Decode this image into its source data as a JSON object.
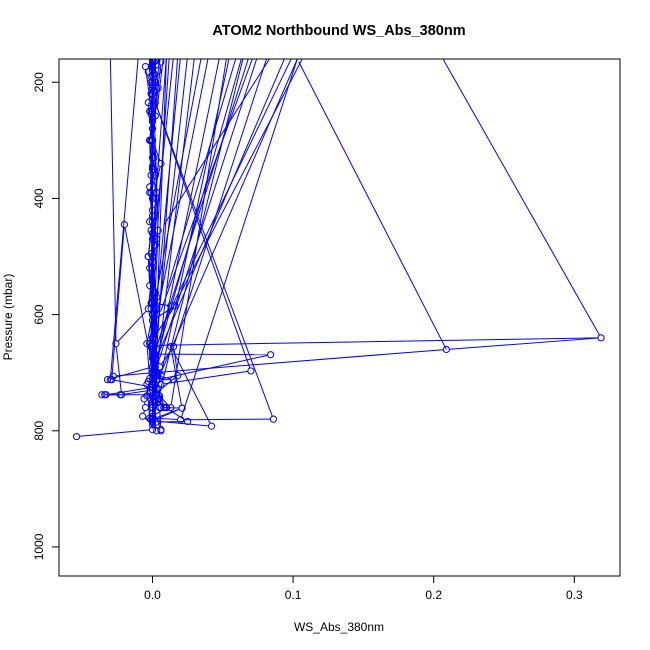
{
  "chart_data": {
    "type": "line",
    "title": "ATOM2 Northbound WS_Abs_380nm",
    "xlabel": "WS_Abs_380nm",
    "ylabel": "Pressure (mbar)",
    "xlim": [
      -0.0665,
      0.3325
    ],
    "ylim": [
      1050,
      160
    ],
    "y_reversed": true,
    "xticks": [
      0.0,
      0.1,
      0.2,
      0.3
    ],
    "xtick_labels": [
      "0.0",
      "0.1",
      "0.2",
      "0.3"
    ],
    "yticks": [
      200,
      400,
      600,
      800,
      1000
    ],
    "ytick_labels": [
      "200",
      "400",
      "600",
      "800",
      "1000"
    ],
    "grid": false,
    "series": [
      {
        "color": "#0000ff",
        "marker": "open-circle",
        "points": [
          [
            -0.054,
            810
          ],
          [
            0.0,
            798
          ],
          [
            -0.002,
            778
          ],
          [
            -0.004,
            720
          ],
          [
            0.003,
            700
          ],
          [
            -0.002,
            650
          ],
          [
            0.001,
            590
          ],
          [
            0.0,
            460
          ],
          [
            -0.001,
            360
          ],
          [
            0.0,
            300
          ],
          [
            0.002,
            258
          ],
          [
            -0.003,
            235
          ],
          [
            0.0,
            200
          ],
          [
            -0.003,
            182
          ],
          [
            0.001,
            165
          ],
          [
            -0.005,
            173
          ],
          [
            0.0,
            263
          ],
          [
            0.003,
            390
          ],
          [
            -0.001,
            590
          ],
          [
            0.0,
            650
          ],
          [
            0.002,
            700
          ],
          [
            0.0,
            740
          ],
          [
            0.005,
            760
          ],
          [
            0.006,
            798
          ],
          [
            0.0,
            760
          ],
          [
            -0.003,
            715
          ],
          [
            0.002,
            690
          ],
          [
            0.0,
            660
          ],
          [
            0.001,
            620
          ],
          [
            0.0,
            570
          ],
          [
            -0.002,
            520
          ],
          [
            0.0,
            500
          ],
          [
            0.003,
            400
          ],
          [
            0.0,
            350
          ],
          [
            -0.001,
            250
          ],
          [
            0.002,
            200
          ],
          [
            0.004,
            180
          ],
          [
            0.0,
            168
          ],
          [
            0.004,
            455
          ],
          [
            0.0,
            655
          ],
          [
            0.001,
            705
          ],
          [
            0.004,
            728
          ],
          [
            -0.002,
            735
          ],
          [
            0.001,
            748
          ],
          [
            0.0,
            778
          ],
          [
            0.02,
            781
          ],
          [
            0.086,
            780
          ],
          [
            0.002,
            235
          ],
          [
            0.07,
            697
          ],
          [
            0.006,
            720
          ],
          [
            0.003,
            700
          ],
          [
            0.0,
            668
          ],
          [
            0.084,
            669
          ],
          [
            0.004,
            712
          ],
          [
            0.006,
            760
          ],
          [
            0.021,
            761
          ],
          [
            0.0,
            783
          ],
          [
            0.042,
            792
          ],
          [
            0.013,
            655
          ],
          [
            0.021,
            761
          ],
          [
            0.0,
            780
          ],
          [
            0.003,
            785
          ],
          [
            0.025,
            784
          ],
          [
            0.009,
            760
          ],
          [
            0.005,
            740
          ],
          [
            0.0,
            720
          ],
          [
            0.001,
            700
          ],
          [
            0.209,
            660
          ],
          [
            0.319,
            640
          ],
          [
            0.0,
            653
          ],
          [
            0.003,
            705
          ],
          [
            0.0,
            730
          ],
          [
            -0.023,
            738
          ],
          [
            -0.034,
            738
          ],
          [
            -0.036,
            738
          ],
          [
            0.004,
            738
          ],
          [
            0.013,
            760
          ],
          [
            0.008,
            760
          ],
          [
            0.0,
            740
          ],
          [
            -0.002,
            650
          ],
          [
            0.016,
            585
          ],
          [
            0.0,
            610
          ],
          [
            -0.001,
            580
          ],
          [
            0.002,
            562
          ],
          [
            0.0,
            520
          ],
          [
            -0.001,
            495
          ],
          [
            0.003,
            470
          ],
          [
            0.0,
            430
          ],
          [
            -0.002,
            380
          ],
          [
            0.001,
            330
          ],
          [
            0.0,
            300
          ],
          [
            -0.002,
            250
          ],
          [
            0.0,
            220
          ],
          [
            -0.001,
            190
          ],
          [
            0.0,
            172
          ],
          [
            0.0,
            175
          ],
          [
            -0.001,
            655
          ],
          [
            0.0,
            710
          ],
          [
            0.004,
            712
          ],
          [
            0.015,
            712
          ],
          [
            0.003,
            705
          ],
          [
            0.0,
            700
          ],
          [
            -0.028,
            706
          ],
          [
            -0.03,
            712
          ],
          [
            -0.032,
            712
          ],
          [
            0.0,
            690
          ],
          [
            -0.02,
            445
          ],
          [
            -0.029,
            712
          ],
          [
            0.0,
            725
          ],
          [
            -0.033,
            738
          ],
          [
            -0.022,
            738
          ],
          [
            -0.026,
            650
          ],
          [
            -0.003,
            590
          ],
          [
            0.0,
            520
          ],
          [
            0.002,
            480
          ],
          [
            -0.002,
            440
          ],
          [
            0.0,
            420
          ],
          [
            -0.001,
            390
          ],
          [
            0.002,
            360
          ],
          [
            0.0,
            330
          ],
          [
            -0.001,
            300
          ],
          [
            0.0,
            280
          ],
          [
            -0.001,
            255
          ],
          [
            0.0,
            230
          ],
          [
            0.001,
            215
          ],
          [
            0.0,
            205
          ],
          [
            -0.001,
            200
          ],
          [
            0.0,
            188
          ],
          [
            0.0,
            180
          ],
          [
            0.0,
            175
          ],
          [
            0.0,
            170
          ],
          [
            0.0,
            165
          ],
          [
            0.0,
            163
          ],
          [
            0.0,
            210
          ],
          [
            -0.001,
            240
          ],
          [
            0.0,
            268
          ],
          [
            -0.002,
            300
          ],
          [
            0.0,
            345
          ],
          [
            0.0,
            400
          ],
          [
            -0.001,
            455
          ],
          [
            -0.003,
            500
          ],
          [
            -0.002,
            550
          ],
          [
            0.0,
            600
          ],
          [
            0.003,
            660
          ],
          [
            0.005,
            690
          ],
          [
            0.015,
            655
          ],
          [
            0.018,
            705
          ],
          [
            0.0,
            740
          ],
          [
            0.01,
            760
          ],
          [
            0.0,
            775
          ],
          [
            -0.001,
            780
          ],
          [
            0.003,
            800
          ],
          [
            0.006,
            800
          ],
          [
            0.0,
            790
          ],
          [
            -0.007,
            775
          ],
          [
            -0.005,
            760
          ],
          [
            -0.006,
            745
          ],
          [
            -0.004,
            740
          ],
          [
            -0.002,
            710
          ],
          [
            -0.004,
            650
          ],
          [
            0.0,
            600
          ],
          [
            -0.003,
            500
          ],
          [
            0.0,
            440
          ],
          [
            -0.002,
            390
          ],
          [
            0.001,
            350
          ],
          [
            -0.001,
            300
          ],
          [
            0.0,
            260
          ],
          [
            -0.001,
            220
          ],
          [
            0.001,
            185
          ],
          [
            0.0,
            170
          ],
          [
            0.006,
            165
          ],
          [
            0.0,
            300
          ],
          [
            0.0,
            600
          ],
          [
            0.0,
            700
          ],
          [
            0.005,
            745
          ],
          [
            0.0,
            770
          ],
          [
            0.0,
            785
          ],
          [
            0.0,
            760
          ],
          [
            0.0,
            700
          ],
          [
            0.003,
            600
          ],
          [
            0.0,
            500
          ],
          [
            0.003,
            590
          ],
          [
            0.0,
            660
          ],
          [
            0.002,
            720
          ],
          [
            0.0,
            755
          ],
          [
            0.004,
            700
          ],
          [
            0.0,
            640
          ],
          [
            0.003,
            570
          ],
          [
            0.0,
            510
          ],
          [
            0.0,
            470
          ],
          [
            0.0,
            400
          ],
          [
            0.006,
            340
          ],
          [
            0.0,
            300
          ],
          [
            0.0,
            250
          ],
          [
            0.004,
            210
          ],
          [
            0.0,
            180
          ],
          [
            0.002,
            163
          ],
          [
            0.0,
            200
          ],
          [
            0.0,
            250
          ],
          [
            -0.002,
            300
          ],
          [
            0.0,
            460
          ],
          [
            0.0,
            580
          ],
          [
            0.013,
            585
          ],
          [
            0.0,
            675
          ],
          [
            0.006,
            705
          ],
          [
            0.0,
            750
          ],
          [
            0.0,
            770
          ],
          [
            0.004,
            745
          ],
          [
            0.0,
            720
          ]
        ]
      }
    ],
    "extra_segments": [
      [
        [
          0.001,
          705
        ],
        [
          0.075,
          153
        ]
      ],
      [
        [
          0.005,
          715
        ],
        [
          0.055,
          153
        ]
      ],
      [
        [
          0.002,
          680
        ],
        [
          0.095,
          153
        ]
      ],
      [
        [
          0.012,
          600
        ],
        [
          0.108,
          153
        ]
      ],
      [
        [
          0.014,
          585
        ],
        [
          0.1,
          153
        ]
      ],
      [
        [
          0.01,
          560
        ],
        [
          0.06,
          153
        ]
      ],
      [
        [
          0.006,
          700
        ],
        [
          0.103,
          160
        ]
      ],
      [
        [
          0.103,
          160
        ],
        [
          0.209,
          660
        ]
      ],
      [
        [
          0.003,
          655
        ],
        [
          0.069,
          153
        ]
      ],
      [
        [
          0.02,
          781
        ],
        [
          0.103,
          160
        ]
      ],
      [
        [
          0.007,
          450
        ],
        [
          0.085,
          153
        ]
      ],
      [
        [
          0.0,
          640
        ],
        [
          0.04,
          153
        ]
      ],
      [
        [
          0.015,
          655
        ],
        [
          0.082,
          153
        ]
      ],
      [
        [
          0.005,
          600
        ],
        [
          0.072,
          153
        ]
      ],
      [
        [
          0.0,
          700
        ],
        [
          0.064,
          153
        ]
      ],
      [
        [
          0.319,
          640
        ],
        [
          0.205,
          153
        ]
      ],
      [
        [
          0.013,
          760
        ],
        [
          0.053,
          153
        ]
      ],
      [
        [
          0.0,
          785
        ],
        [
          0.065,
          153
        ]
      ],
      [
        [
          0.0,
          720
        ],
        [
          0.048,
          153
        ]
      ],
      [
        [
          0.0,
          600
        ],
        [
          0.035,
          153
        ]
      ],
      [
        [
          0.0,
          800
        ],
        [
          0.01,
          153
        ]
      ],
      [
        [
          0.0,
          500
        ],
        [
          0.015,
          153
        ]
      ],
      [
        [
          0.002,
          720
        ],
        [
          0.03,
          153
        ]
      ],
      [
        [
          0.0,
          700
        ],
        [
          0.025,
          153
        ]
      ],
      [
        [
          0.0,
          650
        ],
        [
          0.02,
          153
        ]
      ],
      [
        [
          0.0,
          760
        ],
        [
          0.018,
          153
        ]
      ],
      [
        [
          -0.03,
          712
        ],
        [
          -0.01,
          153
        ]
      ],
      [
        [
          0.0,
          470
        ],
        [
          0.01,
          153
        ]
      ],
      [
        [
          0.0,
          580
        ],
        [
          0.012,
          153
        ]
      ],
      [
        [
          -0.026,
          650
        ],
        [
          -0.03,
          153
        ]
      ],
      [
        [
          0.0,
          300
        ],
        [
          0.005,
          153
        ]
      ],
      [
        [
          0.0,
          200
        ],
        [
          -0.002,
          153
        ]
      ],
      [
        [
          0.003,
          250
        ],
        [
          0.008,
          153
        ]
      ],
      [
        [
          0.004,
          180
        ],
        [
          0.006,
          153
        ]
      ]
    ]
  }
}
